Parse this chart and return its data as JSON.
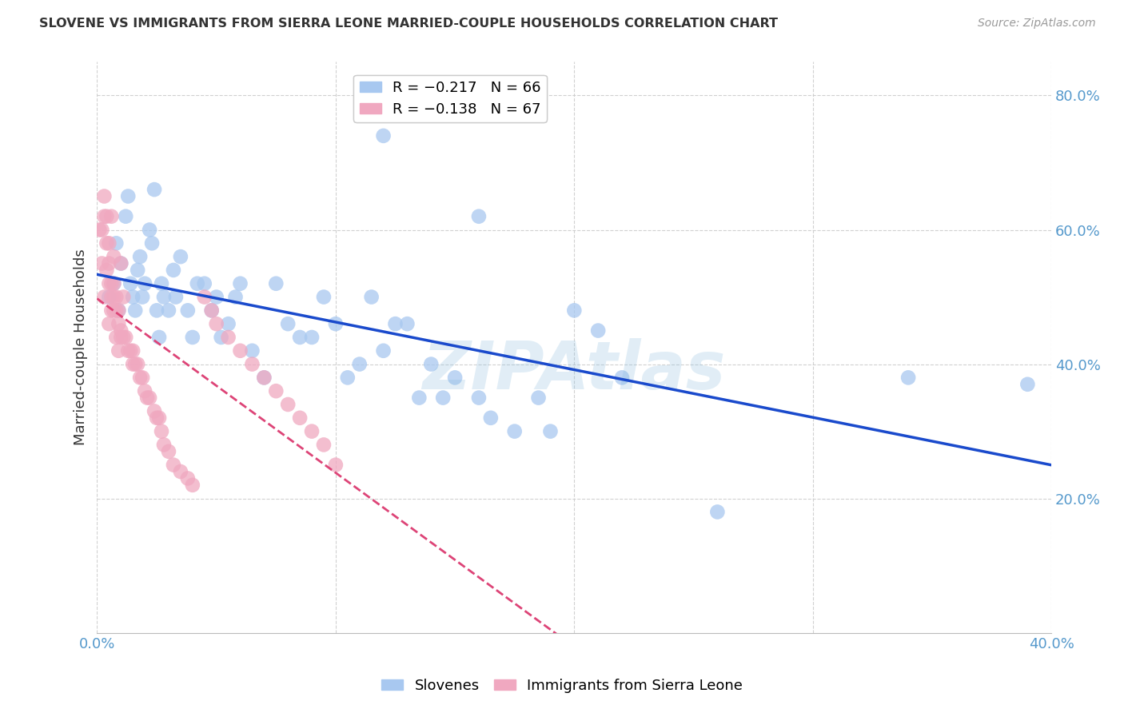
{
  "title": "SLOVENE VS IMMIGRANTS FROM SIERRA LEONE MARRIED-COUPLE HOUSEHOLDS CORRELATION CHART",
  "source": "Source: ZipAtlas.com",
  "ylabel": "Married-couple Households",
  "xmin": 0.0,
  "xmax": 0.4,
  "ymin": 0.0,
  "ymax": 0.85,
  "yticks": [
    0.2,
    0.4,
    0.6,
    0.8
  ],
  "ytick_labels": [
    "20.0%",
    "40.0%",
    "60.0%",
    "80.0%"
  ],
  "xticks": [
    0.0,
    0.1,
    0.2,
    0.3,
    0.4
  ],
  "xtick_labels": [
    "0.0%",
    "",
    "",
    "",
    "40.0%"
  ],
  "slovene_color": "#a8c8f0",
  "sierra_leone_color": "#f0a8c0",
  "slovene_line_color": "#1a4acc",
  "sierra_leone_line_color": "#dd4477",
  "legend_slovene_label": "R = −0.217   N = 66",
  "legend_sierra_leone_label": "R = −0.138   N = 67",
  "legend_slovene": "Slovenes",
  "legend_sierra_leone": "Immigrants from Sierra Leone",
  "watermark": "ZIPAtlas",
  "background_color": "#ffffff",
  "grid_color": "#cccccc",
  "title_color": "#333333",
  "tick_label_color": "#5599cc",
  "slovene_points": [
    [
      0.005,
      0.5
    ],
    [
      0.007,
      0.52
    ],
    [
      0.008,
      0.58
    ],
    [
      0.009,
      0.48
    ],
    [
      0.01,
      0.55
    ],
    [
      0.012,
      0.62
    ],
    [
      0.013,
      0.65
    ],
    [
      0.014,
      0.52
    ],
    [
      0.015,
      0.5
    ],
    [
      0.016,
      0.48
    ],
    [
      0.017,
      0.54
    ],
    [
      0.018,
      0.56
    ],
    [
      0.019,
      0.5
    ],
    [
      0.02,
      0.52
    ],
    [
      0.022,
      0.6
    ],
    [
      0.023,
      0.58
    ],
    [
      0.024,
      0.66
    ],
    [
      0.025,
      0.48
    ],
    [
      0.026,
      0.44
    ],
    [
      0.027,
      0.52
    ],
    [
      0.028,
      0.5
    ],
    [
      0.03,
      0.48
    ],
    [
      0.032,
      0.54
    ],
    [
      0.033,
      0.5
    ],
    [
      0.035,
      0.56
    ],
    [
      0.038,
      0.48
    ],
    [
      0.04,
      0.44
    ],
    [
      0.042,
      0.52
    ],
    [
      0.045,
      0.52
    ],
    [
      0.048,
      0.48
    ],
    [
      0.05,
      0.5
    ],
    [
      0.052,
      0.44
    ],
    [
      0.055,
      0.46
    ],
    [
      0.058,
      0.5
    ],
    [
      0.06,
      0.52
    ],
    [
      0.065,
      0.42
    ],
    [
      0.07,
      0.38
    ],
    [
      0.075,
      0.52
    ],
    [
      0.08,
      0.46
    ],
    [
      0.085,
      0.44
    ],
    [
      0.09,
      0.44
    ],
    [
      0.095,
      0.5
    ],
    [
      0.1,
      0.46
    ],
    [
      0.105,
      0.38
    ],
    [
      0.11,
      0.4
    ],
    [
      0.115,
      0.5
    ],
    [
      0.12,
      0.42
    ],
    [
      0.125,
      0.46
    ],
    [
      0.13,
      0.46
    ],
    [
      0.135,
      0.35
    ],
    [
      0.14,
      0.4
    ],
    [
      0.145,
      0.35
    ],
    [
      0.15,
      0.38
    ],
    [
      0.16,
      0.35
    ],
    [
      0.165,
      0.32
    ],
    [
      0.175,
      0.3
    ],
    [
      0.185,
      0.35
    ],
    [
      0.19,
      0.3
    ],
    [
      0.2,
      0.48
    ],
    [
      0.21,
      0.45
    ],
    [
      0.22,
      0.38
    ],
    [
      0.26,
      0.18
    ],
    [
      0.34,
      0.38
    ],
    [
      0.39,
      0.37
    ],
    [
      0.12,
      0.74
    ],
    [
      0.16,
      0.62
    ]
  ],
  "sierra_leone_points": [
    [
      0.002,
      0.6
    ],
    [
      0.003,
      0.62
    ],
    [
      0.003,
      0.65
    ],
    [
      0.004,
      0.62
    ],
    [
      0.004,
      0.58
    ],
    [
      0.005,
      0.55
    ],
    [
      0.005,
      0.58
    ],
    [
      0.005,
      0.52
    ],
    [
      0.006,
      0.5
    ],
    [
      0.006,
      0.48
    ],
    [
      0.006,
      0.52
    ],
    [
      0.007,
      0.52
    ],
    [
      0.007,
      0.5
    ],
    [
      0.007,
      0.48
    ],
    [
      0.008,
      0.48
    ],
    [
      0.008,
      0.5
    ],
    [
      0.009,
      0.46
    ],
    [
      0.009,
      0.48
    ],
    [
      0.01,
      0.45
    ],
    [
      0.01,
      0.44
    ],
    [
      0.011,
      0.44
    ],
    [
      0.012,
      0.44
    ],
    [
      0.013,
      0.42
    ],
    [
      0.014,
      0.42
    ],
    [
      0.015,
      0.42
    ],
    [
      0.015,
      0.4
    ],
    [
      0.016,
      0.4
    ],
    [
      0.017,
      0.4
    ],
    [
      0.018,
      0.38
    ],
    [
      0.019,
      0.38
    ],
    [
      0.02,
      0.36
    ],
    [
      0.021,
      0.35
    ],
    [
      0.022,
      0.35
    ],
    [
      0.024,
      0.33
    ],
    [
      0.025,
      0.32
    ],
    [
      0.026,
      0.32
    ],
    [
      0.027,
      0.3
    ],
    [
      0.028,
      0.28
    ],
    [
      0.03,
      0.27
    ],
    [
      0.032,
      0.25
    ],
    [
      0.035,
      0.24
    ],
    [
      0.038,
      0.23
    ],
    [
      0.04,
      0.22
    ],
    [
      0.045,
      0.5
    ],
    [
      0.048,
      0.48
    ],
    [
      0.05,
      0.46
    ],
    [
      0.055,
      0.44
    ],
    [
      0.06,
      0.42
    ],
    [
      0.065,
      0.4
    ],
    [
      0.07,
      0.38
    ],
    [
      0.075,
      0.36
    ],
    [
      0.08,
      0.34
    ],
    [
      0.085,
      0.32
    ],
    [
      0.09,
      0.3
    ],
    [
      0.095,
      0.28
    ],
    [
      0.1,
      0.25
    ],
    [
      0.001,
      0.6
    ],
    [
      0.002,
      0.55
    ],
    [
      0.003,
      0.5
    ],
    [
      0.004,
      0.54
    ],
    [
      0.005,
      0.46
    ],
    [
      0.006,
      0.62
    ],
    [
      0.007,
      0.56
    ],
    [
      0.008,
      0.44
    ],
    [
      0.009,
      0.42
    ],
    [
      0.01,
      0.55
    ],
    [
      0.011,
      0.5
    ]
  ]
}
